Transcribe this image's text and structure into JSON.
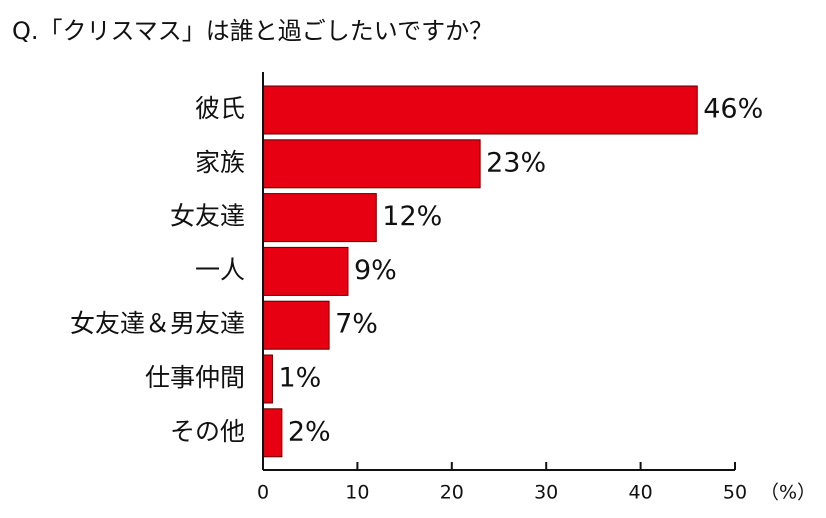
{
  "chart_data": {
    "type": "bar",
    "orientation": "horizontal",
    "title": "Q.「クリスマス」は誰と過ごしたいですか？",
    "categories": [
      "彼氏",
      "家族",
      "女友達",
      "一人",
      "女友達＆男友達",
      "仕事仲間",
      "その他"
    ],
    "values": [
      46,
      23,
      12,
      9,
      7,
      1,
      2
    ],
    "value_labels": [
      "46%",
      "23%",
      "12%",
      "9%",
      "7%",
      "1%",
      "2%"
    ],
    "color": "#e60012",
    "xlim": [
      0,
      50
    ],
    "xticks": [
      0,
      10,
      20,
      30,
      40,
      50
    ],
    "x_unit": "（%）"
  }
}
